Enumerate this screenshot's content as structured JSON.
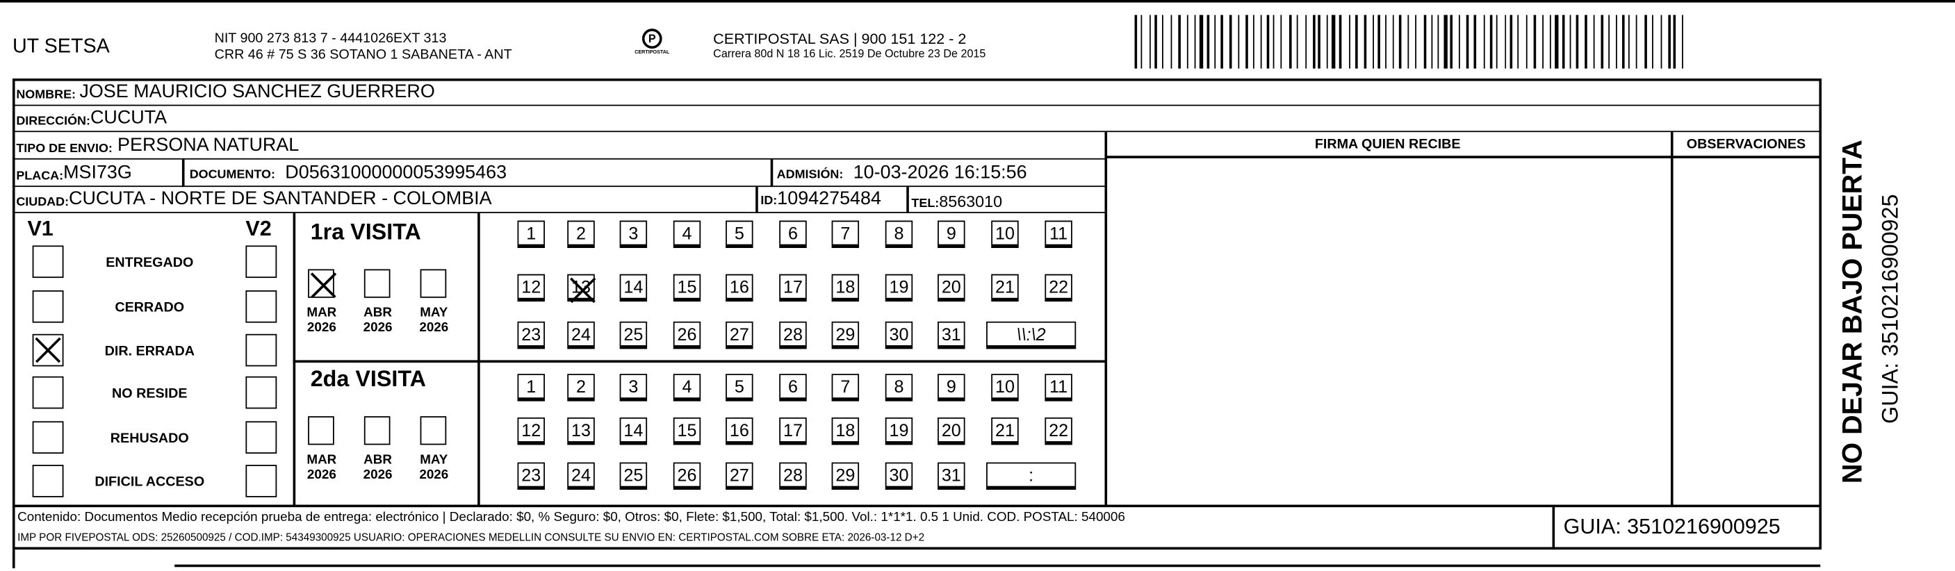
{
  "header": {
    "company": "UT SETSA",
    "nit_line": "NIT 900 273 813 7 - 4441026EXT 313",
    "address_line": "CRR 46 # 75 S 36 SOTANO 1 SABANETA - ANT",
    "carrier_line": "CERTIPOSTAL SAS | 900 151 122 - 2",
    "license_line": "Carrera 80d N 18 16  Lic. 2519 De Octubre 23 De 2015",
    "logo_text": "CERTIPOSTAL",
    "barcode_icon": "barcode"
  },
  "fields": {
    "nombre_label": "NOMBRE:",
    "nombre": "JOSE MAURICIO SANCHEZ GUERRERO",
    "direccion_label": "DIRECCIÓN:",
    "direccion": "CUCUTA",
    "tipo_label": "TIPO DE ENVIO:",
    "tipo": "PERSONA NATURAL",
    "placa_label": "PLACA:",
    "placa": "MSI73G",
    "documento_label": "DOCUMENTO:",
    "documento": "D05631000000053995463",
    "admision_label": "ADMISIÓN:",
    "admision": "10-03-2026 16:15:56",
    "ciudad_label": "CIUDAD:",
    "ciudad": "CUCUTA - NORTE DE SANTANDER - COLOMBIA",
    "id_label": "ID:",
    "id": "1094275484",
    "tel_label": "TEL:",
    "tel": "8563010",
    "firma_label": "FIRMA QUIEN RECIBE",
    "observaciones_label": "OBSERVACIONES"
  },
  "status": {
    "v1_label": "V1",
    "v2_label": "V2",
    "items": [
      {
        "label": "ENTREGADO",
        "v1": false,
        "v2": false
      },
      {
        "label": "CERRADO",
        "v1": false,
        "v2": false
      },
      {
        "label": "DIR. ERRADA",
        "v1": true,
        "v2": false
      },
      {
        "label": "NO RESIDE",
        "v1": false,
        "v2": false
      },
      {
        "label": "REHUSADO",
        "v1": false,
        "v2": false
      },
      {
        "label": "DIFICIL ACCESO",
        "v1": false,
        "v2": false
      }
    ]
  },
  "visits": [
    {
      "title": "1ra VISITA",
      "months": [
        {
          "m": "MAR",
          "y": "2026",
          "checked": true
        },
        {
          "m": "ABR",
          "y": "2026",
          "checked": false
        },
        {
          "m": "MAY",
          "y": "2026",
          "checked": false
        }
      ],
      "crossed_day": "13",
      "time_box": "\\\\:\\2"
    },
    {
      "title": "2da VISITA",
      "months": [
        {
          "m": "MAR",
          "y": "2026",
          "checked": false
        },
        {
          "m": "ABR",
          "y": "2026",
          "checked": false
        },
        {
          "m": "MAY",
          "y": "2026",
          "checked": false
        }
      ],
      "crossed_day": "",
      "time_box": ":"
    }
  ],
  "days": [
    "1",
    "2",
    "3",
    "4",
    "5",
    "6",
    "7",
    "8",
    "9",
    "10",
    "11",
    "12",
    "13",
    "14",
    "15",
    "16",
    "17",
    "18",
    "19",
    "20",
    "21",
    "22",
    "23",
    "24",
    "25",
    "26",
    "27",
    "28",
    "29",
    "30",
    "31"
  ],
  "footer": {
    "line1": "Contenido: Documentos Medio recepción prueba de entrega: electrónico | Declarado: $0, % Seguro: $0, Otros: $0, Flete: $1,500, Total: $1,500. Vol.: 1*1*1. 0.5  1 Unid. COD. POSTAL: 540006",
    "line2": "IMP POR FIVEPOSTAL ODS: 25260500925 / COD.IMP: 54349300925 USUARIO: OPERACIONES MEDELLIN CONSULTE SU ENVIO EN: CERTIPOSTAL.COM SOBRE ETA: 2026-03-12 D+2",
    "guia": "GUIA: 3510216900925"
  },
  "side": {
    "warning": "NO DEJAR BAJO PUERTA",
    "guia": "GUIA: 3510216900925"
  }
}
